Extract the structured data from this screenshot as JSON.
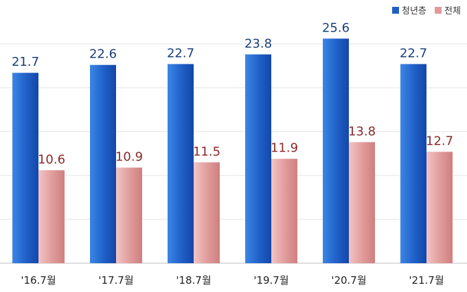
{
  "chart_data": {
    "type": "bar",
    "categories": [
      "'16.7월",
      "'17.7월",
      "'18.7월",
      "'19.7월",
      "'20.7월",
      "'21.7월"
    ],
    "series": [
      {
        "name": "청년층",
        "values": [
          21.7,
          22.6,
          22.7,
          23.8,
          25.6,
          22.7
        ],
        "color": "#1f5fc6",
        "label_color": "#1a3f7a"
      },
      {
        "name": "전체",
        "values": [
          10.6,
          10.9,
          11.5,
          11.9,
          13.8,
          12.7
        ],
        "color": "#e09a9a",
        "label_color": "#8a2a2a"
      }
    ],
    "title": "",
    "xlabel": "",
    "ylabel": "",
    "ylim": [
      0,
      30
    ],
    "grid": true,
    "legend": "top-right"
  }
}
